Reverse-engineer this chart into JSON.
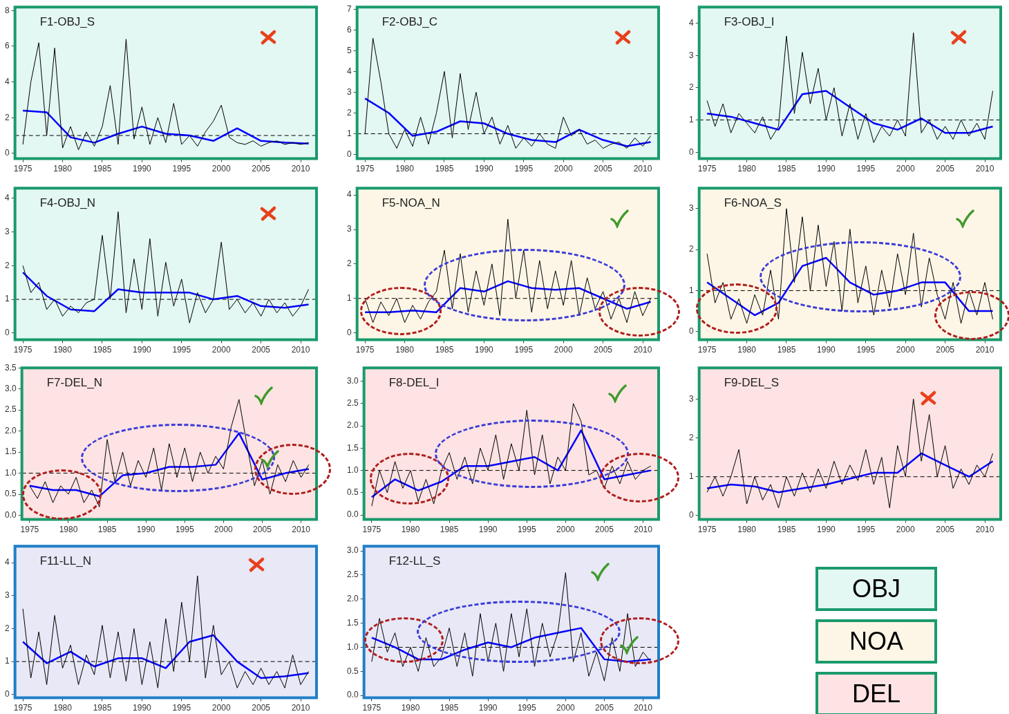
{
  "chart_data": [
    {
      "type": "line",
      "title": "F1-OBJ_S",
      "xlim": [
        1974,
        2012
      ],
      "xticks": [
        1975,
        1980,
        1985,
        1990,
        1995,
        2000,
        2005,
        2010
      ],
      "ylim": [
        -0.3,
        8.2
      ],
      "yticks": [
        0,
        2,
        4,
        6,
        8
      ],
      "ref_lines": [
        {
          "axis": "y",
          "value": 1,
          "color": "#000000",
          "line_style": "dashed"
        }
      ],
      "series": [
        {
          "color": "#000000",
          "x": [
            1975,
            1976,
            1977,
            1978,
            1979,
            1980,
            1981,
            1982,
            1983,
            1984,
            1985,
            1986,
            1987,
            1988,
            1989,
            1990,
            1991,
            1992,
            1993,
            1994,
            1995,
            1996,
            1997,
            1998,
            1999,
            2000,
            2001,
            2002,
            2003,
            2004,
            2005,
            2006,
            2007,
            2008,
            2009,
            2010,
            2011
          ],
          "values": [
            0.5,
            4.0,
            6.2,
            1.0,
            5.9,
            0.3,
            1.5,
            0.2,
            1.2,
            0.4,
            1.5,
            3.8,
            0.5,
            6.4,
            0.8,
            2.6,
            0.5,
            2.0,
            0.6,
            2.8,
            0.5,
            1.0,
            0.4,
            1.2,
            1.8,
            2.7,
            0.9,
            0.6,
            0.5,
            0.7,
            0.4,
            0.6,
            0.7,
            0.5,
            0.6,
            0.5,
            0.6
          ]
        },
        {
          "color": "#0000ff",
          "x": [
            1975,
            1978,
            1981,
            1984,
            1987,
            1990,
            1993,
            1996,
            1999,
            2002,
            2005,
            2008,
            2011
          ],
          "values": [
            2.4,
            2.3,
            0.9,
            0.6,
            1.1,
            1.5,
            1.1,
            1.0,
            0.7,
            1.4,
            0.7,
            0.6,
            0.55
          ]
        }
      ]
    },
    {
      "type": "line",
      "title": "F2-OBJ_C",
      "xlim": [
        1974,
        2012
      ],
      "xticks": [
        1975,
        1980,
        1985,
        1990,
        1995,
        2000,
        2005,
        2010
      ],
      "ylim": [
        -0.2,
        7.1
      ],
      "yticks": [
        0,
        1,
        2,
        3,
        4,
        5,
        6,
        7
      ],
      "ref_lines": [
        {
          "axis": "y",
          "value": 1,
          "color": "#000000",
          "line_style": "dashed"
        }
      ],
      "series": [
        {
          "color": "#000000",
          "x": [
            1975,
            1976,
            1977,
            1978,
            1979,
            1980,
            1981,
            1982,
            1983,
            1984,
            1985,
            1986,
            1987,
            1988,
            1989,
            1990,
            1991,
            1992,
            1993,
            1994,
            1995,
            1996,
            1997,
            1998,
            1999,
            2000,
            2001,
            2002,
            2003,
            2004,
            2005,
            2006,
            2007,
            2008,
            2009,
            2010,
            2011
          ],
          "values": [
            1.0,
            5.6,
            3.5,
            1.0,
            0.3,
            1.2,
            0.4,
            1.8,
            0.5,
            2.0,
            4.0,
            0.8,
            3.9,
            1.2,
            3.0,
            1.0,
            1.8,
            0.5,
            1.4,
            0.3,
            0.8,
            0.4,
            1.0,
            0.5,
            0.3,
            1.8,
            0.9,
            1.2,
            0.5,
            0.7,
            0.3,
            0.5,
            0.6,
            0.3,
            0.8,
            0.4,
            0.9
          ]
        },
        {
          "color": "#0000ff",
          "x": [
            1975,
            1978,
            1981,
            1984,
            1987,
            1990,
            1993,
            1996,
            1999,
            2002,
            2005,
            2008,
            2011
          ],
          "values": [
            2.7,
            2.0,
            0.9,
            1.1,
            1.6,
            1.5,
            1.0,
            0.7,
            0.6,
            1.2,
            0.7,
            0.4,
            0.6
          ]
        }
      ]
    },
    {
      "type": "line",
      "title": "F3-OBJ_I",
      "xlim": [
        1974,
        2012
      ],
      "xticks": [
        1975,
        1980,
        1985,
        1990,
        1995,
        2000,
        2005,
        2010
      ],
      "ylim": [
        -0.2,
        4.5
      ],
      "yticks": [
        0,
        1,
        2,
        3,
        4
      ],
      "ref_lines": [
        {
          "axis": "y",
          "value": 1,
          "color": "#000000",
          "line_style": "dashed"
        }
      ],
      "series": [
        {
          "color": "#000000",
          "x": [
            1975,
            1976,
            1977,
            1978,
            1979,
            1980,
            1981,
            1982,
            1983,
            1984,
            1985,
            1986,
            1987,
            1988,
            1989,
            1990,
            1991,
            1992,
            1993,
            1994,
            1995,
            1996,
            1997,
            1998,
            1999,
            2000,
            2001,
            2002,
            2003,
            2004,
            2005,
            2006,
            2007,
            2008,
            2009,
            2010,
            2011
          ],
          "values": [
            1.6,
            0.8,
            1.5,
            0.6,
            1.2,
            0.9,
            0.6,
            1.1,
            0.4,
            0.8,
            3.6,
            1.2,
            3.1,
            1.5,
            2.6,
            1.0,
            2.0,
            0.5,
            1.5,
            0.4,
            1.2,
            0.3,
            0.8,
            0.5,
            1.0,
            0.5,
            3.7,
            0.6,
            1.0,
            0.4,
            0.8,
            0.4,
            1.0,
            0.5,
            0.9,
            0.4,
            1.9
          ]
        },
        {
          "color": "#0000ff",
          "x": [
            1975,
            1978,
            1981,
            1984,
            1987,
            1990,
            1993,
            1996,
            1999,
            2002,
            2005,
            2008,
            2011
          ],
          "values": [
            1.2,
            1.1,
            0.9,
            0.7,
            1.8,
            1.9,
            1.4,
            0.9,
            0.7,
            1.05,
            0.6,
            0.6,
            0.8
          ]
        }
      ]
    },
    {
      "type": "line",
      "title": "F4-OBJ_N",
      "xlim": [
        1974,
        2012
      ],
      "xticks": [
        1975,
        1980,
        1985,
        1990,
        1995,
        2000,
        2005,
        2010
      ],
      "ylim": [
        -0.2,
        4.3
      ],
      "yticks": [
        0,
        1,
        2,
        3,
        4
      ],
      "ref_lines": [
        {
          "axis": "y",
          "value": 1,
          "color": "#000000",
          "line_style": "dashed"
        }
      ],
      "series": [
        {
          "color": "#000000",
          "x": [
            1975,
            1976,
            1977,
            1978,
            1979,
            1980,
            1981,
            1982,
            1983,
            1984,
            1985,
            1986,
            1987,
            1988,
            1989,
            1990,
            1991,
            1992,
            1993,
            1994,
            1995,
            1996,
            1997,
            1998,
            1999,
            2000,
            2001,
            2002,
            2003,
            2004,
            2005,
            2006,
            2007,
            2008,
            2009,
            2010,
            2011
          ],
          "values": [
            2.0,
            1.2,
            1.5,
            0.7,
            1.0,
            0.5,
            0.8,
            0.6,
            0.9,
            1.0,
            2.9,
            1.0,
            3.6,
            0.6,
            2.2,
            0.7,
            2.8,
            0.5,
            2.1,
            0.8,
            1.6,
            0.3,
            1.2,
            0.6,
            1.0,
            2.7,
            0.7,
            1.0,
            0.6,
            0.9,
            0.5,
            1.0,
            0.6,
            0.9,
            0.5,
            0.8,
            1.3
          ]
        },
        {
          "color": "#0000ff",
          "x": [
            1975,
            1978,
            1981,
            1984,
            1987,
            1990,
            1993,
            1996,
            1999,
            2002,
            2005,
            2008,
            2011
          ],
          "values": [
            1.8,
            1.1,
            0.7,
            0.65,
            1.3,
            1.2,
            1.2,
            1.2,
            1.0,
            1.1,
            0.8,
            0.75,
            0.85
          ]
        }
      ]
    },
    {
      "type": "line",
      "title": "F5-NOA_N",
      "xlim": [
        1974,
        2012
      ],
      "xticks": [
        1975,
        1980,
        1985,
        1990,
        1995,
        2000,
        2005,
        2010
      ],
      "ylim": [
        -0.2,
        4.2
      ],
      "yticks": [
        0,
        1,
        2,
        3,
        4
      ],
      "ref_lines": [
        {
          "axis": "y",
          "value": 1,
          "color": "#000000",
          "line_style": "dashed"
        }
      ],
      "series": [
        {
          "color": "#000000",
          "x": [
            1975,
            1976,
            1977,
            1978,
            1979,
            1980,
            1981,
            1982,
            1983,
            1984,
            1985,
            1986,
            1987,
            1988,
            1989,
            1990,
            1991,
            1992,
            1993,
            1994,
            1995,
            1996,
            1997,
            1998,
            1999,
            2000,
            2001,
            2002,
            2003,
            2004,
            2005,
            2006,
            2007,
            2008,
            2009,
            2010,
            2011
          ],
          "values": [
            1.0,
            0.3,
            0.9,
            0.5,
            1.0,
            0.3,
            0.8,
            0.4,
            0.9,
            1.2,
            2.4,
            0.7,
            2.3,
            0.6,
            1.8,
            0.8,
            2.0,
            0.5,
            3.3,
            1.0,
            2.4,
            0.6,
            2.1,
            0.7,
            1.8,
            0.8,
            2.1,
            0.5,
            1.6,
            0.7,
            1.2,
            0.4,
            1.0,
            0.3,
            1.2,
            0.5,
            1.0
          ]
        },
        {
          "color": "#0000ff",
          "x": [
            1975,
            1978,
            1981,
            1984,
            1987,
            1990,
            1993,
            1996,
            1999,
            2002,
            2005,
            2008,
            2011
          ],
          "values": [
            0.6,
            0.6,
            0.65,
            0.6,
            1.3,
            1.2,
            1.5,
            1.3,
            1.25,
            1.3,
            1.0,
            0.7,
            0.9
          ]
        }
      ]
    },
    {
      "type": "line",
      "title": "F6-NOA_S",
      "xlim": [
        1974,
        2012
      ],
      "xticks": [
        1975,
        1980,
        1985,
        1990,
        1995,
        2000,
        2005,
        2010
      ],
      "ylim": [
        -0.2,
        3.5
      ],
      "yticks": [
        0,
        1,
        2,
        3
      ],
      "ref_lines": [
        {
          "axis": "y",
          "value": 1,
          "color": "#000000",
          "line_style": "dashed"
        }
      ],
      "series": [
        {
          "color": "#000000",
          "x": [
            1975,
            1976,
            1977,
            1978,
            1979,
            1980,
            1981,
            1982,
            1983,
            1984,
            1985,
            1986,
            1987,
            1988,
            1989,
            1990,
            1991,
            1992,
            1993,
            1994,
            1995,
            1996,
            1997,
            1998,
            1999,
            2000,
            2001,
            2002,
            2003,
            2004,
            2005,
            2006,
            2007,
            2008,
            2009,
            2010,
            2011
          ],
          "values": [
            1.9,
            0.7,
            1.2,
            0.3,
            0.8,
            0.2,
            0.9,
            0.4,
            1.5,
            0.3,
            3.0,
            1.2,
            2.8,
            1.0,
            2.6,
            1.1,
            2.2,
            0.5,
            2.5,
            0.7,
            1.6,
            0.4,
            1.5,
            0.6,
            1.9,
            0.9,
            2.4,
            0.6,
            1.8,
            0.9,
            0.3,
            1.2,
            0.2,
            1.0,
            0.4,
            1.2,
            0.3
          ]
        },
        {
          "color": "#0000ff",
          "x": [
            1975,
            1978,
            1981,
            1984,
            1987,
            1990,
            1993,
            1996,
            1999,
            2002,
            2005,
            2008,
            2011
          ],
          "values": [
            1.2,
            0.8,
            0.4,
            0.7,
            1.6,
            1.8,
            1.2,
            0.9,
            1.0,
            1.2,
            1.2,
            0.5,
            0.5
          ]
        }
      ]
    },
    {
      "type": "line",
      "title": "F7-DEL_N",
      "xlim": [
        1974,
        2012
      ],
      "xticks": [
        1975,
        1980,
        1985,
        1990,
        1995,
        2000,
        2005,
        2010
      ],
      "ylim": [
        -0.1,
        3.5
      ],
      "yticks": [
        {
          "value": 0,
          "label": "0.0"
        },
        {
          "value": 0.5,
          "label": "0.5"
        },
        {
          "value": 1,
          "label": "1.0"
        },
        {
          "value": 1.5,
          "label": "1.5"
        },
        {
          "value": 2,
          "label": "2.0"
        },
        {
          "value": 2.5,
          "label": "2.5"
        },
        {
          "value": 3,
          "label": "3.0"
        },
        {
          "value": 3.5,
          "label": "3.5"
        }
      ],
      "ref_lines": [
        {
          "axis": "y",
          "value": 1,
          "color": "#000000",
          "line_style": "dashed"
        }
      ],
      "series": [
        {
          "color": "#000000",
          "x": [
            1975,
            1976,
            1977,
            1978,
            1979,
            1980,
            1981,
            1982,
            1983,
            1984,
            1985,
            1986,
            1987,
            1988,
            1989,
            1990,
            1991,
            1992,
            1993,
            1994,
            1995,
            1996,
            1997,
            1998,
            1999,
            2000,
            2001,
            2002,
            2003,
            2004,
            2005,
            2006,
            2007,
            2008,
            2009,
            2010,
            2011
          ],
          "values": [
            0.7,
            0.4,
            0.8,
            0.3,
            0.7,
            0.5,
            0.9,
            0.3,
            0.6,
            0.2,
            1.8,
            0.8,
            1.5,
            0.7,
            1.3,
            0.9,
            1.6,
            0.6,
            1.7,
            0.9,
            1.6,
            0.8,
            1.5,
            1.0,
            1.4,
            1.1,
            2.1,
            2.75,
            1.7,
            0.7,
            1.3,
            0.5,
            1.2,
            0.8,
            1.3,
            0.9,
            1.2
          ]
        },
        {
          "color": "#0000ff",
          "x": [
            1975,
            1978,
            1981,
            1984,
            1987,
            1990,
            1993,
            1996,
            1999,
            2002,
            2005,
            2008,
            2011
          ],
          "values": [
            0.7,
            0.6,
            0.6,
            0.45,
            0.95,
            1.0,
            1.15,
            1.15,
            1.2,
            1.95,
            0.85,
            1.0,
            1.1
          ]
        }
      ]
    },
    {
      "type": "line",
      "title": "F8-DEL_I",
      "xlim": [
        1974,
        2012
      ],
      "xticks": [
        1975,
        1980,
        1985,
        1990,
        1995,
        2000,
        2005,
        2010
      ],
      "ylim": [
        -0.1,
        3.3
      ],
      "yticks": [
        {
          "value": 0,
          "label": "0.0"
        },
        {
          "value": 0.5,
          "label": "0.5"
        },
        {
          "value": 1,
          "label": "1.0"
        },
        {
          "value": 1.5,
          "label": "1.5"
        },
        {
          "value": 2,
          "label": "2.0"
        },
        {
          "value": 2.5,
          "label": "2.5"
        },
        {
          "value": 3,
          "label": "3.0"
        }
      ],
      "ref_lines": [
        {
          "axis": "y",
          "value": 1,
          "color": "#000000",
          "line_style": "dashed"
        }
      ],
      "series": [
        {
          "color": "#000000",
          "x": [
            1975,
            1976,
            1977,
            1978,
            1979,
            1980,
            1981,
            1982,
            1983,
            1984,
            1985,
            1986,
            1987,
            1988,
            1989,
            1990,
            1991,
            1992,
            1993,
            1994,
            1995,
            1996,
            1997,
            1998,
            1999,
            2000,
            2001,
            2002,
            2003,
            2004,
            2005,
            2006,
            2007,
            2008,
            2009,
            2010,
            2011
          ],
          "values": [
            0.2,
            1.0,
            0.5,
            1.2,
            0.6,
            1.0,
            0.3,
            0.8,
            0.25,
            1.0,
            1.4,
            0.8,
            1.3,
            0.7,
            1.5,
            1.0,
            1.8,
            0.8,
            1.6,
            1.0,
            2.35,
            0.9,
            1.8,
            0.7,
            1.3,
            1.0,
            2.5,
            2.1,
            0.9,
            1.0,
            0.6,
            1.1,
            0.7,
            1.2,
            0.8,
            1.0,
            1.1
          ]
        },
        {
          "color": "#0000ff",
          "x": [
            1975,
            1978,
            1981,
            1984,
            1987,
            1990,
            1993,
            1996,
            1999,
            2002,
            2005,
            2008,
            2011
          ],
          "values": [
            0.4,
            0.8,
            0.55,
            0.75,
            1.1,
            1.1,
            1.2,
            1.3,
            1.0,
            1.9,
            0.8,
            0.9,
            1.0
          ]
        }
      ]
    },
    {
      "type": "line",
      "title": "F9-DEL_S",
      "xlim": [
        1974,
        2012
      ],
      "xticks": [
        1975,
        1980,
        1985,
        1990,
        1995,
        2000,
        2005,
        2010
      ],
      "ylim": [
        -0.1,
        3.8
      ],
      "yticks": [
        0,
        1,
        2,
        3
      ],
      "ref_lines": [
        {
          "axis": "y",
          "value": 1,
          "color": "#000000",
          "line_style": "dashed"
        }
      ],
      "series": [
        {
          "color": "#000000",
          "x": [
            1975,
            1976,
            1977,
            1978,
            1979,
            1980,
            1981,
            1982,
            1983,
            1984,
            1985,
            1986,
            1987,
            1988,
            1989,
            1990,
            1991,
            1992,
            1993,
            1994,
            1995,
            1996,
            1997,
            1998,
            1999,
            2000,
            2001,
            2002,
            2003,
            2004,
            2005,
            2006,
            2007,
            2008,
            2009,
            2010,
            2011
          ],
          "values": [
            0.6,
            1.0,
            0.5,
            1.0,
            1.7,
            0.3,
            1.0,
            0.4,
            0.8,
            0.2,
            1.0,
            0.5,
            1.1,
            0.6,
            1.2,
            0.7,
            1.4,
            0.8,
            1.3,
            0.9,
            1.7,
            0.8,
            1.5,
            0.2,
            1.8,
            1.0,
            3.0,
            1.4,
            2.6,
            1.0,
            1.8,
            0.7,
            1.2,
            0.8,
            1.3,
            1.0,
            1.6
          ]
        },
        {
          "color": "#0000ff",
          "x": [
            1975,
            1978,
            1981,
            1984,
            1987,
            1990,
            1993,
            1996,
            1999,
            2002,
            2005,
            2008,
            2011
          ],
          "values": [
            0.7,
            0.8,
            0.75,
            0.6,
            0.7,
            0.8,
            0.95,
            1.1,
            1.1,
            1.6,
            1.3,
            1.0,
            1.4
          ]
        }
      ]
    },
    {
      "type": "line",
      "title": "F11-LL_N",
      "xlim": [
        1974,
        2012
      ],
      "xticks": [
        1975,
        1980,
        1985,
        1990,
        1995,
        2000,
        2005,
        2010
      ],
      "ylim": [
        -0.1,
        4.5
      ],
      "yticks": [
        0,
        1,
        2,
        3,
        4
      ],
      "ref_lines": [
        {
          "axis": "y",
          "value": 1,
          "color": "#000000",
          "line_style": "dashed"
        }
      ],
      "series": [
        {
          "color": "#000000",
          "x": [
            1975,
            1976,
            1977,
            1978,
            1979,
            1980,
            1981,
            1982,
            1983,
            1984,
            1985,
            1986,
            1987,
            1988,
            1989,
            1990,
            1991,
            1992,
            1993,
            1994,
            1995,
            1996,
            1997,
            1998,
            1999,
            2000,
            2001,
            2002,
            2003,
            2004,
            2005,
            2006,
            2007,
            2008,
            2009,
            2010,
            2011
          ],
          "values": [
            2.6,
            0.5,
            1.9,
            0.3,
            2.4,
            0.8,
            1.5,
            0.3,
            1.2,
            0.6,
            2.1,
            0.5,
            1.9,
            0.4,
            2.0,
            0.3,
            1.6,
            0.2,
            2.3,
            0.7,
            2.8,
            1.0,
            3.6,
            0.5,
            2.1,
            0.6,
            1.0,
            0.2,
            0.7,
            0.3,
            0.8,
            0.3,
            0.7,
            0.2,
            1.2,
            0.3,
            0.7
          ]
        },
        {
          "color": "#0000ff",
          "x": [
            1975,
            1978,
            1981,
            1984,
            1987,
            1990,
            1993,
            1996,
            1999,
            2002,
            2005,
            2008,
            2011
          ],
          "values": [
            1.6,
            0.95,
            1.3,
            0.85,
            1.1,
            1.1,
            0.8,
            1.6,
            1.8,
            1.0,
            0.5,
            0.55,
            0.65
          ]
        }
      ]
    },
    {
      "type": "line",
      "title": "F12-LL_S",
      "xlim": [
        1974,
        2012
      ],
      "xticks": [
        1975,
        1980,
        1985,
        1990,
        1995,
        2000,
        2005,
        2010
      ],
      "ylim": [
        -0.05,
        3.1
      ],
      "yticks": [
        {
          "value": 0,
          "label": "0.0"
        },
        {
          "value": 0.5,
          "label": "0.5"
        },
        {
          "value": 1,
          "label": "1.0"
        },
        {
          "value": 1.5,
          "label": "1.5"
        },
        {
          "value": 2,
          "label": "2.0"
        },
        {
          "value": 2.5,
          "label": "2.5"
        },
        {
          "value": 3,
          "label": "3.0"
        }
      ],
      "ref_lines": [
        {
          "axis": "y",
          "value": 1,
          "color": "#000000",
          "line_style": "dashed"
        }
      ],
      "series": [
        {
          "color": "#000000",
          "x": [
            1975,
            1976,
            1977,
            1978,
            1979,
            1980,
            1981,
            1982,
            1983,
            1984,
            1985,
            1986,
            1987,
            1988,
            1989,
            1990,
            1991,
            1992,
            1993,
            1994,
            1995,
            1996,
            1997,
            1998,
            1999,
            2000,
            2001,
            2002,
            2003,
            2004,
            2005,
            2006,
            2007,
            2008,
            2009,
            2010,
            2011
          ],
          "values": [
            0.7,
            1.6,
            0.9,
            1.3,
            0.6,
            1.0,
            0.5,
            1.2,
            0.6,
            0.8,
            1.4,
            0.6,
            1.3,
            0.4,
            1.7,
            0.7,
            1.5,
            0.5,
            1.7,
            0.8,
            1.8,
            0.6,
            1.5,
            0.8,
            1.3,
            2.55,
            0.7,
            1.3,
            0.4,
            0.9,
            0.3,
            1.2,
            0.5,
            1.7,
            0.6,
            0.9,
            0.7
          ]
        },
        {
          "color": "#0000ff",
          "x": [
            1975,
            1978,
            1981,
            1984,
            1987,
            1990,
            1993,
            1996,
            1999,
            2002,
            2005,
            2008,
            2011
          ],
          "values": [
            1.2,
            1.0,
            0.75,
            0.75,
            0.95,
            1.1,
            1.0,
            1.2,
            1.3,
            1.4,
            0.75,
            0.7,
            0.75
          ]
        }
      ]
    },
    {
      "type": "other",
      "annotations": [
        "OBJ",
        "NOA",
        "DEL"
      ]
    }
  ]
}
